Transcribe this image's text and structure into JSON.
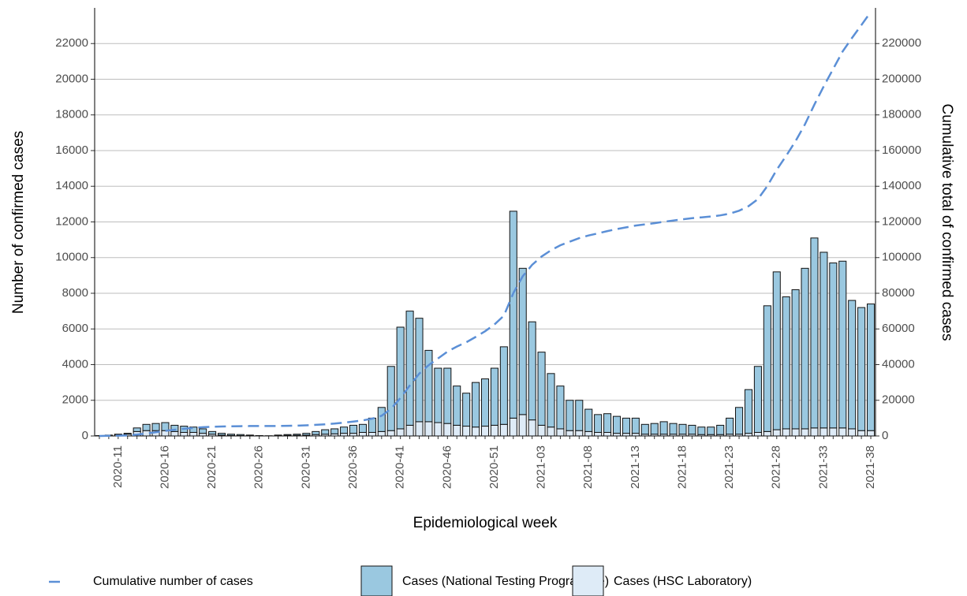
{
  "chart_data": {
    "type": "combo",
    "x_label": "Epidemiological week",
    "y_label": "Number of confirmed cases",
    "y2_label": "Cumulative total of confirmed cases",
    "categories": [
      null,
      null,
      "2020-11",
      null,
      null,
      null,
      null,
      "2020-16",
      null,
      null,
      null,
      null,
      "2020-21",
      null,
      null,
      null,
      null,
      "2020-26",
      null,
      null,
      null,
      null,
      "2020-31",
      null,
      null,
      null,
      null,
      "2020-36",
      null,
      null,
      null,
      null,
      "2020-41",
      null,
      null,
      null,
      null,
      "2020-46",
      null,
      null,
      null,
      null,
      "2020-51",
      null,
      null,
      null,
      null,
      "2021-03",
      null,
      null,
      null,
      null,
      "2021-08",
      null,
      null,
      null,
      null,
      "2021-13",
      null,
      null,
      null,
      null,
      "2021-18",
      null,
      null,
      null,
      null,
      "2021-23",
      null,
      null,
      null,
      null,
      "2021-28",
      null,
      null,
      null,
      null,
      "2021-33",
      null,
      null,
      null,
      null,
      "2021-38"
    ],
    "ylim": [
      0,
      24000
    ],
    "yticks": [
      0,
      2000,
      4000,
      6000,
      8000,
      10000,
      12000,
      14000,
      16000,
      18000,
      20000,
      22000
    ],
    "y2lim": [
      0,
      240000
    ],
    "y2ticks": [
      0,
      20000,
      40000,
      60000,
      80000,
      100000,
      120000,
      140000,
      160000,
      180000,
      200000,
      220000
    ],
    "grid": true,
    "series": [
      {
        "name": "Cumulative number of cases",
        "type": "line",
        "axis": "y2",
        "color": "#5b8fd6",
        "values": [
          20,
          70,
          170,
          320,
          770,
          1420,
          2120,
          2870,
          3470,
          4020,
          4520,
          4920,
          5170,
          5320,
          5420,
          5500,
          5550,
          5570,
          5580,
          5630,
          5710,
          5810,
          5960,
          6210,
          6560,
          6960,
          7460,
          8060,
          8710,
          9710,
          11310,
          15210,
          21310,
          28310,
          34910,
          39710,
          43510,
          47310,
          50110,
          52510,
          55510,
          58710,
          62510,
          67510,
          80110,
          89510,
          95910,
          100610,
          104110,
          106910,
          108910,
          110910,
          112410,
          113610,
          114860,
          115960,
          116960,
          117960,
          118610,
          119310,
          120110,
          120810,
          121460,
          122060,
          122560,
          123060,
          123660,
          124660,
          126260,
          128860,
          132760,
          140060,
          149260,
          157060,
          165260,
          174660,
          185760,
          196060,
          205760,
          215560,
          223160,
          230360,
          237760
        ]
      },
      {
        "name": "Cases (National Testing Programme)",
        "type": "bar",
        "color": "#9ac8e0",
        "values": [
          0,
          0,
          20,
          50,
          200,
          350,
          400,
          450,
          350,
          350,
          300,
          250,
          150,
          100,
          70,
          60,
          30,
          10,
          5,
          30,
          50,
          60,
          100,
          170,
          250,
          280,
          350,
          450,
          450,
          800,
          1350,
          3600,
          5700,
          6400,
          5800,
          4000,
          3050,
          3100,
          2200,
          1850,
          2500,
          2650,
          3200,
          4350,
          11600,
          8200,
          5500,
          4100,
          3000,
          2400,
          1700,
          1700,
          1250,
          1000,
          1050,
          950,
          850,
          850,
          550,
          600,
          700,
          600,
          550,
          500,
          420,
          420,
          520,
          900,
          1500,
          2450,
          3700,
          7050,
          8850,
          7400,
          7800,
          9000,
          10650,
          9850,
          9250,
          9350,
          7200,
          6900,
          7100
        ]
      },
      {
        "name": "Cases (HSC Laboratory)",
        "type": "bar",
        "color": "#deebf7",
        "values": [
          20,
          50,
          80,
          100,
          250,
          300,
          300,
          300,
          250,
          200,
          200,
          150,
          100,
          50,
          30,
          20,
          20,
          10,
          5,
          20,
          30,
          40,
          50,
          80,
          100,
          120,
          150,
          150,
          200,
          200,
          250,
          300,
          400,
          600,
          800,
          800,
          750,
          700,
          600,
          550,
          500,
          550,
          600,
          650,
          1000,
          1200,
          900,
          600,
          500,
          400,
          300,
          300,
          250,
          200,
          200,
          150,
          150,
          150,
          100,
          100,
          100,
          100,
          100,
          100,
          80,
          80,
          80,
          100,
          100,
          150,
          200,
          250,
          350,
          400,
          400,
          400,
          450,
          450,
          450,
          450,
          400,
          300,
          300
        ]
      }
    ]
  }
}
